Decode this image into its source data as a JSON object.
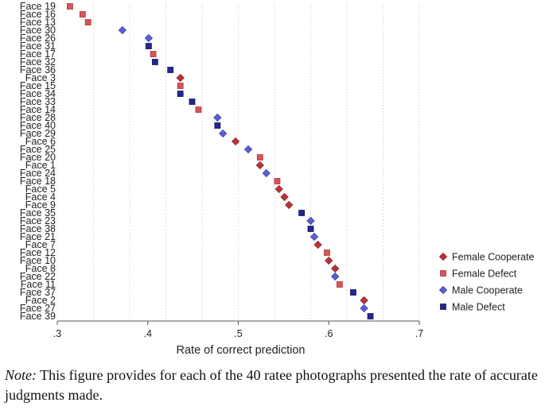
{
  "chart_data": {
    "type": "scatter",
    "xlabel": "Rate of correct prediction",
    "xlim": [
      0.3,
      0.7
    ],
    "xticks": [
      {
        "value": 0.3,
        "label": ".3"
      },
      {
        "value": 0.4,
        "label": ".4"
      },
      {
        "value": 0.5,
        "label": ".5"
      },
      {
        "value": 0.6,
        "label": ".6"
      },
      {
        "value": 0.7,
        "label": ".7"
      }
    ],
    "grid": true,
    "legend_position": "right",
    "legend": [
      {
        "name": "Female Cooperate",
        "color": "#b5343a",
        "marker": "diamond"
      },
      {
        "name": "Female Defect",
        "color": "#d9545a",
        "marker": "square"
      },
      {
        "name": "Male Cooperate",
        "color": "#5a5fd6",
        "marker": "diamond"
      },
      {
        "name": "Male Defect",
        "color": "#23278f",
        "marker": "square"
      }
    ],
    "points": [
      {
        "face": "Face 19",
        "group": 1,
        "x": 0.314
      },
      {
        "face": "Face 16",
        "group": 1,
        "x": 0.328
      },
      {
        "face": "Face 13",
        "group": 1,
        "x": 0.334
      },
      {
        "face": "Face 30",
        "group": 2,
        "x": 0.372
      },
      {
        "face": "Face 26",
        "group": 2,
        "x": 0.401
      },
      {
        "face": "Face 31",
        "group": 3,
        "x": 0.401
      },
      {
        "face": "Face 17",
        "group": 1,
        "x": 0.406
      },
      {
        "face": "Face 32",
        "group": 3,
        "x": 0.408
      },
      {
        "face": "Face 36",
        "group": 3,
        "x": 0.425
      },
      {
        "face": "Face 3",
        "group": 0,
        "x": 0.436
      },
      {
        "face": "Face 15",
        "group": 1,
        "x": 0.436
      },
      {
        "face": "Face 34",
        "group": 3,
        "x": 0.436
      },
      {
        "face": "Face 33",
        "group": 3,
        "x": 0.449
      },
      {
        "face": "Face 14",
        "group": 1,
        "x": 0.456
      },
      {
        "face": "Face 28",
        "group": 2,
        "x": 0.477
      },
      {
        "face": "Face 40",
        "group": 3,
        "x": 0.477
      },
      {
        "face": "Face 29",
        "group": 2,
        "x": 0.483
      },
      {
        "face": "Face 6",
        "group": 0,
        "x": 0.497
      },
      {
        "face": "Face 25",
        "group": 2,
        "x": 0.511
      },
      {
        "face": "Face 20",
        "group": 1,
        "x": 0.524
      },
      {
        "face": "Face 1",
        "group": 0,
        "x": 0.524
      },
      {
        "face": "Face 24",
        "group": 2,
        "x": 0.531
      },
      {
        "face": "Face 18",
        "group": 1,
        "x": 0.543
      },
      {
        "face": "Face 5",
        "group": 0,
        "x": 0.545
      },
      {
        "face": "Face 4",
        "group": 0,
        "x": 0.551
      },
      {
        "face": "Face 9",
        "group": 0,
        "x": 0.556
      },
      {
        "face": "Face 35",
        "group": 3,
        "x": 0.57
      },
      {
        "face": "Face 23",
        "group": 2,
        "x": 0.58
      },
      {
        "face": "Face 38",
        "group": 3,
        "x": 0.58
      },
      {
        "face": "Face 21",
        "group": 2,
        "x": 0.584
      },
      {
        "face": "Face 7",
        "group": 0,
        "x": 0.588
      },
      {
        "face": "Face 12",
        "group": 1,
        "x": 0.598
      },
      {
        "face": "Face 10",
        "group": 0,
        "x": 0.6
      },
      {
        "face": "Face 8",
        "group": 0,
        "x": 0.607
      },
      {
        "face": "Face 22",
        "group": 2,
        "x": 0.607
      },
      {
        "face": "Face 11",
        "group": 1,
        "x": 0.612
      },
      {
        "face": "Face 37",
        "group": 3,
        "x": 0.627
      },
      {
        "face": "Face 2",
        "group": 0,
        "x": 0.639
      },
      {
        "face": "Face 27",
        "group": 2,
        "x": 0.639
      },
      {
        "face": "Face 39",
        "group": 3,
        "x": 0.646
      }
    ]
  },
  "note": {
    "label": "Note:",
    "text": " This figure provides for each of the 40 ratee photographs presented the rate of accurate judgments made."
  }
}
